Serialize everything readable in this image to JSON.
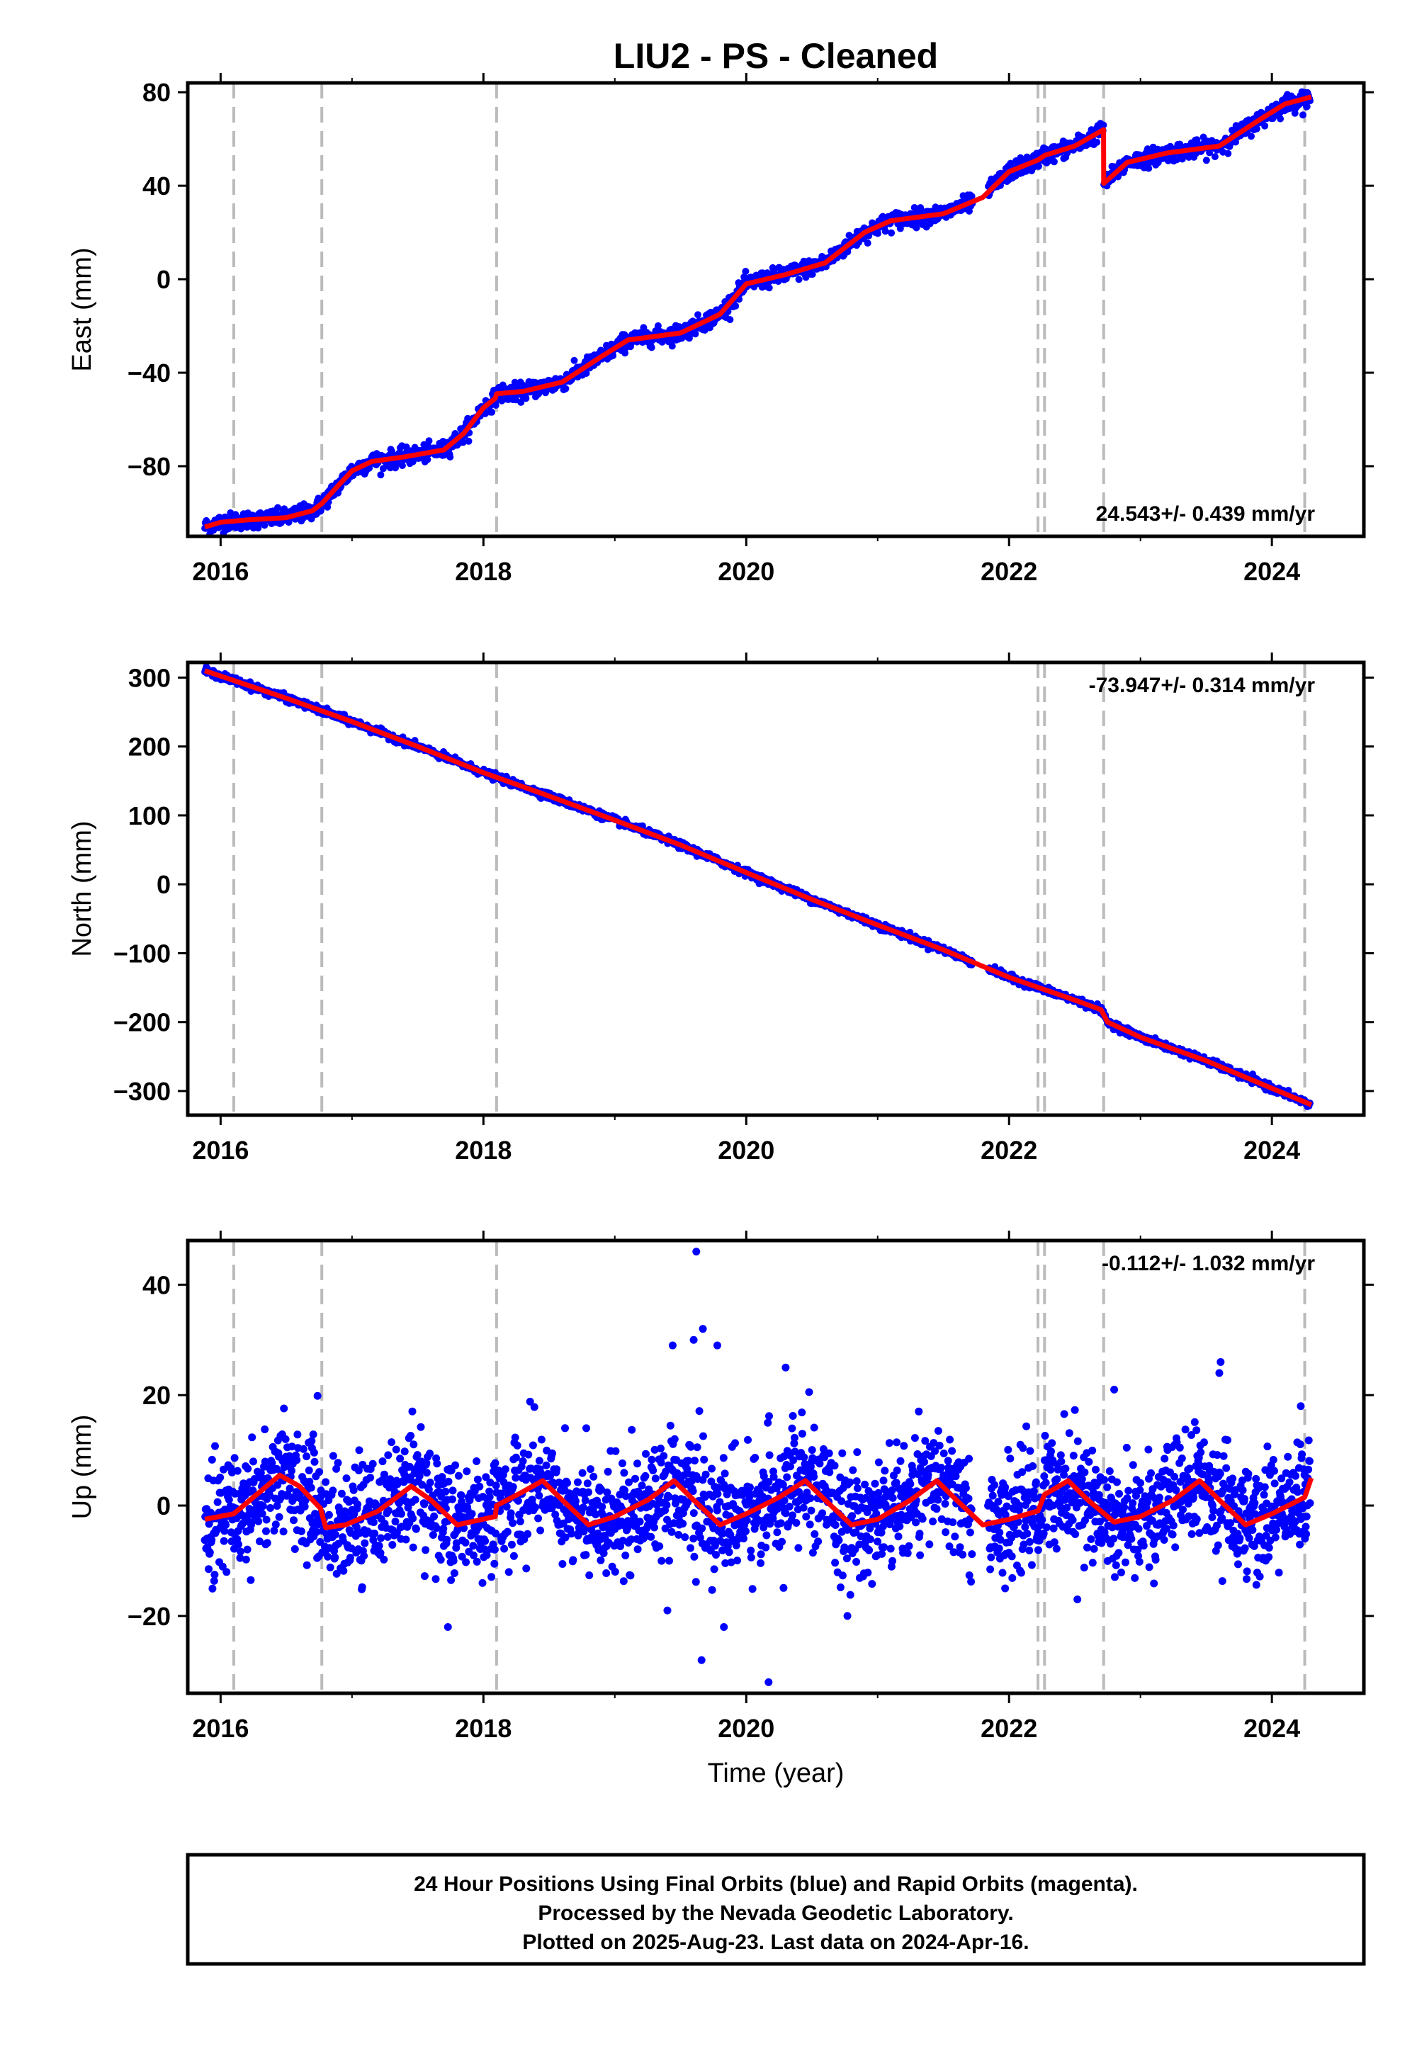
{
  "title": "LIU2  - PS - Cleaned",
  "footer": {
    "line1": "24 Hour Positions Using Final Orbits (blue) and Rapid Orbits (magenta).",
    "line2": "Processed by the Nevada Geodetic Laboratory.",
    "line3": "Plotted on 2025-Aug-23. Last data on 2024-Apr-16."
  },
  "colors": {
    "data_points": "#0000ff",
    "model_fit": "#ff0000",
    "event_lines": "#bbbbbb"
  },
  "chart_data": [
    {
      "type": "scatter",
      "component": "east",
      "ylabel": "East (mm)",
      "xlabel": "",
      "xlim": [
        2015.75,
        2024.7
      ],
      "ylim": [
        -110,
        84
      ],
      "x_ticks": [
        "2016",
        "2018",
        "2020",
        "2022",
        "2024"
      ],
      "y_ticks": [
        "80",
        "40",
        "0",
        "−40",
        "−80"
      ],
      "rate_label": "24.543+/- 0.439 mm/yr",
      "rate_position": "bottom-right",
      "event_lines": [
        2016.1,
        2016.77,
        2018.1,
        2022.22,
        2022.27,
        2022.72,
        2024.25
      ],
      "noise_mm": 1.8,
      "model": [
        {
          "x": 2015.88,
          "y": -106
        },
        {
          "x": 2016.0,
          "y": -104
        },
        {
          "x": 2016.2,
          "y": -103
        },
        {
          "x": 2016.5,
          "y": -102
        },
        {
          "x": 2016.7,
          "y": -99
        },
        {
          "x": 2016.77,
          "y": -96
        },
        {
          "x": 2016.9,
          "y": -88
        },
        {
          "x": 2017.0,
          "y": -82
        },
        {
          "x": 2017.15,
          "y": -78
        },
        {
          "x": 2017.4,
          "y": -76
        },
        {
          "x": 2017.7,
          "y": -73
        },
        {
          "x": 2017.85,
          "y": -66
        },
        {
          "x": 2018.0,
          "y": -55
        },
        {
          "x": 2018.09,
          "y": -51
        },
        {
          "x": 2018.1,
          "y": -49
        },
        {
          "x": 2018.3,
          "y": -48
        },
        {
          "x": 2018.6,
          "y": -44
        },
        {
          "x": 2018.9,
          "y": -33
        },
        {
          "x": 2019.1,
          "y": -26
        },
        {
          "x": 2019.5,
          "y": -23
        },
        {
          "x": 2019.8,
          "y": -15
        },
        {
          "x": 2020.0,
          "y": -2
        },
        {
          "x": 2020.3,
          "y": 2
        },
        {
          "x": 2020.6,
          "y": 7
        },
        {
          "x": 2020.9,
          "y": 20
        },
        {
          "x": 2021.1,
          "y": 25
        },
        {
          "x": 2021.5,
          "y": 28
        },
        {
          "x": 2021.8,
          "y": 35
        },
        {
          "x": 2022.0,
          "y": 46
        },
        {
          "x": 2022.22,
          "y": 51
        },
        {
          "x": 2022.27,
          "y": 53
        },
        {
          "x": 2022.5,
          "y": 57
        },
        {
          "x": 2022.719,
          "y": 64
        },
        {
          "x": 2022.72,
          "y": 41
        },
        {
          "x": 2022.9,
          "y": 50
        },
        {
          "x": 2023.2,
          "y": 54
        },
        {
          "x": 2023.6,
          "y": 57
        },
        {
          "x": 2023.9,
          "y": 68
        },
        {
          "x": 2024.1,
          "y": 75
        },
        {
          "x": 2024.3,
          "y": 78
        }
      ]
    },
    {
      "type": "scatter",
      "component": "north",
      "ylabel": "North (mm)",
      "xlabel": "",
      "xlim": [
        2015.75,
        2024.7
      ],
      "ylim": [
        -335,
        322
      ],
      "x_ticks": [
        "2016",
        "2018",
        "2020",
        "2022",
        "2024"
      ],
      "y_ticks": [
        "300",
        "200",
        "100",
        "0",
        "−100",
        "−200",
        "−300"
      ],
      "rate_label": "-73.947+/- 0.314 mm/yr",
      "rate_position": "top-right",
      "event_lines": [
        2016.1,
        2016.77,
        2018.1,
        2022.22,
        2022.27,
        2022.72,
        2024.25
      ],
      "noise_mm": 2.5,
      "model": [
        {
          "x": 2015.88,
          "y": 310
        },
        {
          "x": 2016.5,
          "y": 270
        },
        {
          "x": 2017.0,
          "y": 236
        },
        {
          "x": 2017.5,
          "y": 200
        },
        {
          "x": 2018.0,
          "y": 162
        },
        {
          "x": 2018.5,
          "y": 128
        },
        {
          "x": 2019.0,
          "y": 93
        },
        {
          "x": 2019.5,
          "y": 57
        },
        {
          "x": 2020.0,
          "y": 17
        },
        {
          "x": 2020.5,
          "y": -22
        },
        {
          "x": 2021.0,
          "y": -59
        },
        {
          "x": 2021.5,
          "y": -95
        },
        {
          "x": 2022.0,
          "y": -135
        },
        {
          "x": 2022.5,
          "y": -168
        },
        {
          "x": 2022.7,
          "y": -182
        },
        {
          "x": 2022.75,
          "y": -200
        },
        {
          "x": 2023.0,
          "y": -222
        },
        {
          "x": 2023.5,
          "y": -256
        },
        {
          "x": 2024.0,
          "y": -296
        },
        {
          "x": 2024.3,
          "y": -320
        }
      ]
    },
    {
      "type": "scatter",
      "component": "up",
      "ylabel": "Up (mm)",
      "xlabel": "Time (year)",
      "xlim": [
        2015.75,
        2024.7
      ],
      "ylim": [
        -34,
        48
      ],
      "x_ticks": [
        "2016",
        "2018",
        "2020",
        "2022",
        "2024"
      ],
      "y_ticks": [
        "40",
        "20",
        "0",
        "−20"
      ],
      "rate_label": "-0.112+/- 1.032 mm/yr",
      "rate_position": "top-right",
      "event_lines": [
        2016.1,
        2016.77,
        2018.1,
        2022.22,
        2022.27,
        2022.72,
        2024.25
      ],
      "noise_mm": 5.0,
      "outliers": [
        {
          "x": 2019.62,
          "y": 46
        },
        {
          "x": 2019.44,
          "y": 29
        },
        {
          "x": 2019.67,
          "y": 32
        },
        {
          "x": 2019.78,
          "y": 29
        },
        {
          "x": 2019.6,
          "y": 30
        },
        {
          "x": 2019.83,
          "y": -22
        },
        {
          "x": 2019.66,
          "y": -28
        },
        {
          "x": 2020.17,
          "y": -32
        },
        {
          "x": 2017.73,
          "y": -22
        },
        {
          "x": 2023.61,
          "y": 26
        },
        {
          "x": 2023.6,
          "y": 24
        },
        {
          "x": 2022.8,
          "y": 21
        },
        {
          "x": 2024.22,
          "y": 18
        },
        {
          "x": 2020.3,
          "y": 25
        },
        {
          "x": 2019.4,
          "y": -19
        },
        {
          "x": 2020.77,
          "y": -20
        },
        {
          "x": 2022.52,
          "y": -17
        },
        {
          "x": 2021.97,
          "y": -15
        }
      ],
      "model": [
        {
          "x": 2015.88,
          "y": -2.5
        },
        {
          "x": 2016.1,
          "y": -1.5
        },
        {
          "x": 2016.3,
          "y": 2.5
        },
        {
          "x": 2016.45,
          "y": 5.5
        },
        {
          "x": 2016.6,
          "y": 3.5
        },
        {
          "x": 2016.76,
          "y": -0.5
        },
        {
          "x": 2016.8,
          "y": -4
        },
        {
          "x": 2016.95,
          "y": -3.5
        },
        {
          "x": 2017.2,
          "y": -1
        },
        {
          "x": 2017.45,
          "y": 3.5
        },
        {
          "x": 2017.6,
          "y": 1
        },
        {
          "x": 2017.8,
          "y": -3.5
        },
        {
          "x": 2018.09,
          "y": -2
        },
        {
          "x": 2018.1,
          "y": 0
        },
        {
          "x": 2018.3,
          "y": 2.5
        },
        {
          "x": 2018.45,
          "y": 4.5
        },
        {
          "x": 2018.6,
          "y": 1
        },
        {
          "x": 2018.8,
          "y": -3.5
        },
        {
          "x": 2019.0,
          "y": -2
        },
        {
          "x": 2019.25,
          "y": 1
        },
        {
          "x": 2019.45,
          "y": 4.5
        },
        {
          "x": 2019.6,
          "y": 1
        },
        {
          "x": 2019.8,
          "y": -3.5
        },
        {
          "x": 2020.0,
          "y": -1.5
        },
        {
          "x": 2020.25,
          "y": 1.5
        },
        {
          "x": 2020.45,
          "y": 4.5
        },
        {
          "x": 2020.6,
          "y": 1
        },
        {
          "x": 2020.8,
          "y": -3.5
        },
        {
          "x": 2021.0,
          "y": -2.5
        },
        {
          "x": 2021.25,
          "y": 1
        },
        {
          "x": 2021.45,
          "y": 4.5
        },
        {
          "x": 2021.6,
          "y": 1
        },
        {
          "x": 2021.8,
          "y": -3.5
        },
        {
          "x": 2022.0,
          "y": -2.5
        },
        {
          "x": 2022.22,
          "y": -1
        },
        {
          "x": 2022.27,
          "y": 2
        },
        {
          "x": 2022.45,
          "y": 4.5
        },
        {
          "x": 2022.6,
          "y": 1
        },
        {
          "x": 2022.8,
          "y": -3
        },
        {
          "x": 2023.0,
          "y": -2
        },
        {
          "x": 2023.25,
          "y": 1
        },
        {
          "x": 2023.45,
          "y": 4.5
        },
        {
          "x": 2023.6,
          "y": 1
        },
        {
          "x": 2023.8,
          "y": -3.5
        },
        {
          "x": 2024.0,
          "y": -1.5
        },
        {
          "x": 2024.25,
          "y": 1.5
        },
        {
          "x": 2024.3,
          "y": 5
        }
      ]
    }
  ]
}
